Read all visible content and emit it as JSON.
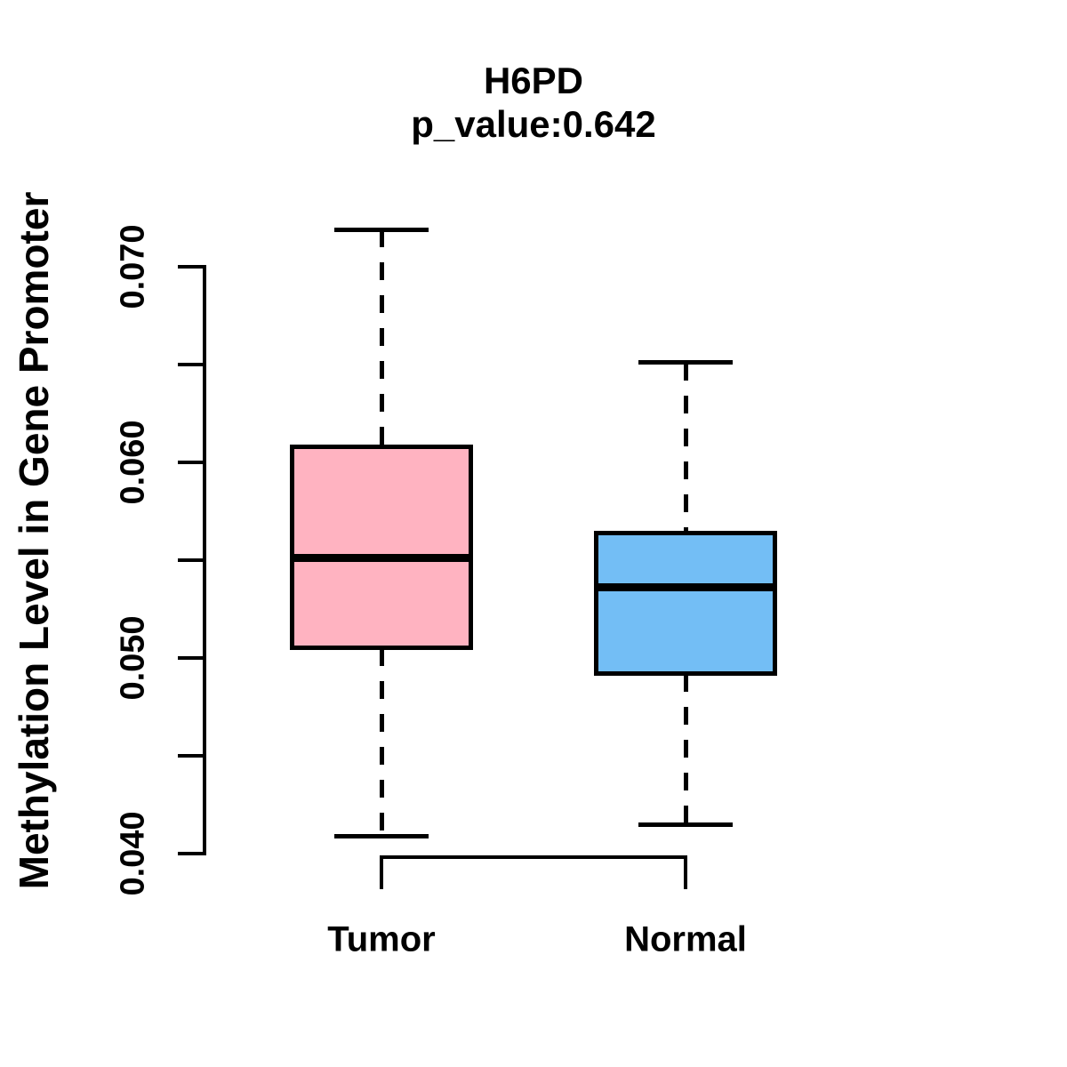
{
  "title": "H6PD",
  "subtitle": "p_value:0.642",
  "y_axis": {
    "label": "Methylation Level in Gene Promoter",
    "tick_labels_shown": [
      "0.040",
      "0.050",
      "0.060",
      "0.070"
    ]
  },
  "x_axis": {
    "labels": [
      "Tumor",
      "Normal"
    ]
  },
  "colors": {
    "tumor_fill": "#FFB3C1",
    "normal_fill": "#73BEF5",
    "line": "#000000",
    "background": "#FFFFFF"
  },
  "chart_data": {
    "type": "boxplot",
    "title": "H6PD",
    "subtitle": "p_value:0.642",
    "xlabel": "",
    "ylabel": "Methylation Level in Gene Promoter",
    "categories": [
      "Tumor",
      "Normal"
    ],
    "series": [
      {
        "name": "Tumor",
        "color": "#FFB3C1",
        "whisker_low": 0.0409,
        "q1": 0.0505,
        "median": 0.0551,
        "q3": 0.0608,
        "whisker_high": 0.0719
      },
      {
        "name": "Normal",
        "color": "#73BEF5",
        "whisker_low": 0.0415,
        "q1": 0.0492,
        "median": 0.0536,
        "q3": 0.0564,
        "whisker_high": 0.0651
      }
    ],
    "ylim": [
      0.04,
      0.07
    ],
    "yticks": [
      0.04,
      0.045,
      0.05,
      0.055,
      0.06,
      0.065,
      0.07
    ],
    "ytick_labels_shown": [
      "0.040",
      "0.050",
      "0.060",
      "0.070"
    ],
    "grid": false,
    "legend": false,
    "whisker_style": "dashed",
    "orientation": "vertical"
  }
}
